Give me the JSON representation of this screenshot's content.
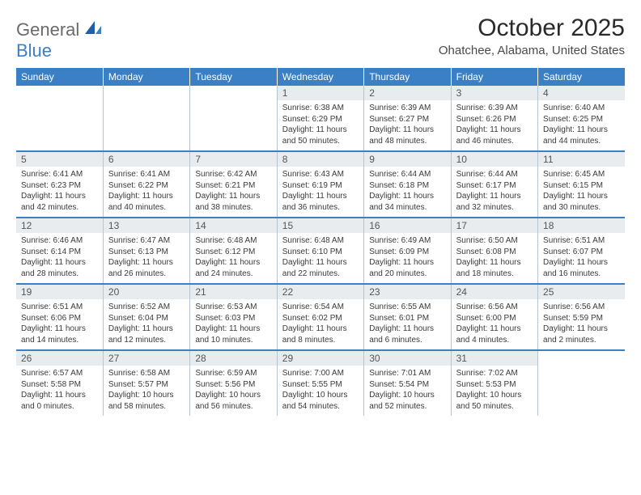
{
  "logo": {
    "general": "General",
    "blue": "Blue"
  },
  "title": "October 2025",
  "location": "Ohatchee, Alabama, United States",
  "header_color": "#3b7fc4",
  "header_text_color": "#ffffff",
  "daynum_bg": "#e8ecef",
  "border_color": "#b8c4d0",
  "weekdays": [
    "Sunday",
    "Monday",
    "Tuesday",
    "Wednesday",
    "Thursday",
    "Friday",
    "Saturday"
  ],
  "weeks": [
    [
      {
        "n": "",
        "empty": true
      },
      {
        "n": "",
        "empty": true
      },
      {
        "n": "",
        "empty": true
      },
      {
        "n": "1",
        "sr": "Sunrise: 6:38 AM",
        "ss": "Sunset: 6:29 PM",
        "d1": "Daylight: 11 hours",
        "d2": "and 50 minutes."
      },
      {
        "n": "2",
        "sr": "Sunrise: 6:39 AM",
        "ss": "Sunset: 6:27 PM",
        "d1": "Daylight: 11 hours",
        "d2": "and 48 minutes."
      },
      {
        "n": "3",
        "sr": "Sunrise: 6:39 AM",
        "ss": "Sunset: 6:26 PM",
        "d1": "Daylight: 11 hours",
        "d2": "and 46 minutes."
      },
      {
        "n": "4",
        "sr": "Sunrise: 6:40 AM",
        "ss": "Sunset: 6:25 PM",
        "d1": "Daylight: 11 hours",
        "d2": "and 44 minutes."
      }
    ],
    [
      {
        "n": "5",
        "sr": "Sunrise: 6:41 AM",
        "ss": "Sunset: 6:23 PM",
        "d1": "Daylight: 11 hours",
        "d2": "and 42 minutes."
      },
      {
        "n": "6",
        "sr": "Sunrise: 6:41 AM",
        "ss": "Sunset: 6:22 PM",
        "d1": "Daylight: 11 hours",
        "d2": "and 40 minutes."
      },
      {
        "n": "7",
        "sr": "Sunrise: 6:42 AM",
        "ss": "Sunset: 6:21 PM",
        "d1": "Daylight: 11 hours",
        "d2": "and 38 minutes."
      },
      {
        "n": "8",
        "sr": "Sunrise: 6:43 AM",
        "ss": "Sunset: 6:19 PM",
        "d1": "Daylight: 11 hours",
        "d2": "and 36 minutes."
      },
      {
        "n": "9",
        "sr": "Sunrise: 6:44 AM",
        "ss": "Sunset: 6:18 PM",
        "d1": "Daylight: 11 hours",
        "d2": "and 34 minutes."
      },
      {
        "n": "10",
        "sr": "Sunrise: 6:44 AM",
        "ss": "Sunset: 6:17 PM",
        "d1": "Daylight: 11 hours",
        "d2": "and 32 minutes."
      },
      {
        "n": "11",
        "sr": "Sunrise: 6:45 AM",
        "ss": "Sunset: 6:15 PM",
        "d1": "Daylight: 11 hours",
        "d2": "and 30 minutes."
      }
    ],
    [
      {
        "n": "12",
        "sr": "Sunrise: 6:46 AM",
        "ss": "Sunset: 6:14 PM",
        "d1": "Daylight: 11 hours",
        "d2": "and 28 minutes."
      },
      {
        "n": "13",
        "sr": "Sunrise: 6:47 AM",
        "ss": "Sunset: 6:13 PM",
        "d1": "Daylight: 11 hours",
        "d2": "and 26 minutes."
      },
      {
        "n": "14",
        "sr": "Sunrise: 6:48 AM",
        "ss": "Sunset: 6:12 PM",
        "d1": "Daylight: 11 hours",
        "d2": "and 24 minutes."
      },
      {
        "n": "15",
        "sr": "Sunrise: 6:48 AM",
        "ss": "Sunset: 6:10 PM",
        "d1": "Daylight: 11 hours",
        "d2": "and 22 minutes."
      },
      {
        "n": "16",
        "sr": "Sunrise: 6:49 AM",
        "ss": "Sunset: 6:09 PM",
        "d1": "Daylight: 11 hours",
        "d2": "and 20 minutes."
      },
      {
        "n": "17",
        "sr": "Sunrise: 6:50 AM",
        "ss": "Sunset: 6:08 PM",
        "d1": "Daylight: 11 hours",
        "d2": "and 18 minutes."
      },
      {
        "n": "18",
        "sr": "Sunrise: 6:51 AM",
        "ss": "Sunset: 6:07 PM",
        "d1": "Daylight: 11 hours",
        "d2": "and 16 minutes."
      }
    ],
    [
      {
        "n": "19",
        "sr": "Sunrise: 6:51 AM",
        "ss": "Sunset: 6:06 PM",
        "d1": "Daylight: 11 hours",
        "d2": "and 14 minutes."
      },
      {
        "n": "20",
        "sr": "Sunrise: 6:52 AM",
        "ss": "Sunset: 6:04 PM",
        "d1": "Daylight: 11 hours",
        "d2": "and 12 minutes."
      },
      {
        "n": "21",
        "sr": "Sunrise: 6:53 AM",
        "ss": "Sunset: 6:03 PM",
        "d1": "Daylight: 11 hours",
        "d2": "and 10 minutes."
      },
      {
        "n": "22",
        "sr": "Sunrise: 6:54 AM",
        "ss": "Sunset: 6:02 PM",
        "d1": "Daylight: 11 hours",
        "d2": "and 8 minutes."
      },
      {
        "n": "23",
        "sr": "Sunrise: 6:55 AM",
        "ss": "Sunset: 6:01 PM",
        "d1": "Daylight: 11 hours",
        "d2": "and 6 minutes."
      },
      {
        "n": "24",
        "sr": "Sunrise: 6:56 AM",
        "ss": "Sunset: 6:00 PM",
        "d1": "Daylight: 11 hours",
        "d2": "and 4 minutes."
      },
      {
        "n": "25",
        "sr": "Sunrise: 6:56 AM",
        "ss": "Sunset: 5:59 PM",
        "d1": "Daylight: 11 hours",
        "d2": "and 2 minutes."
      }
    ],
    [
      {
        "n": "26",
        "sr": "Sunrise: 6:57 AM",
        "ss": "Sunset: 5:58 PM",
        "d1": "Daylight: 11 hours",
        "d2": "and 0 minutes."
      },
      {
        "n": "27",
        "sr": "Sunrise: 6:58 AM",
        "ss": "Sunset: 5:57 PM",
        "d1": "Daylight: 10 hours",
        "d2": "and 58 minutes."
      },
      {
        "n": "28",
        "sr": "Sunrise: 6:59 AM",
        "ss": "Sunset: 5:56 PM",
        "d1": "Daylight: 10 hours",
        "d2": "and 56 minutes."
      },
      {
        "n": "29",
        "sr": "Sunrise: 7:00 AM",
        "ss": "Sunset: 5:55 PM",
        "d1": "Daylight: 10 hours",
        "d2": "and 54 minutes."
      },
      {
        "n": "30",
        "sr": "Sunrise: 7:01 AM",
        "ss": "Sunset: 5:54 PM",
        "d1": "Daylight: 10 hours",
        "d2": "and 52 minutes."
      },
      {
        "n": "31",
        "sr": "Sunrise: 7:02 AM",
        "ss": "Sunset: 5:53 PM",
        "d1": "Daylight: 10 hours",
        "d2": "and 50 minutes."
      },
      {
        "n": "",
        "empty": true
      }
    ]
  ]
}
